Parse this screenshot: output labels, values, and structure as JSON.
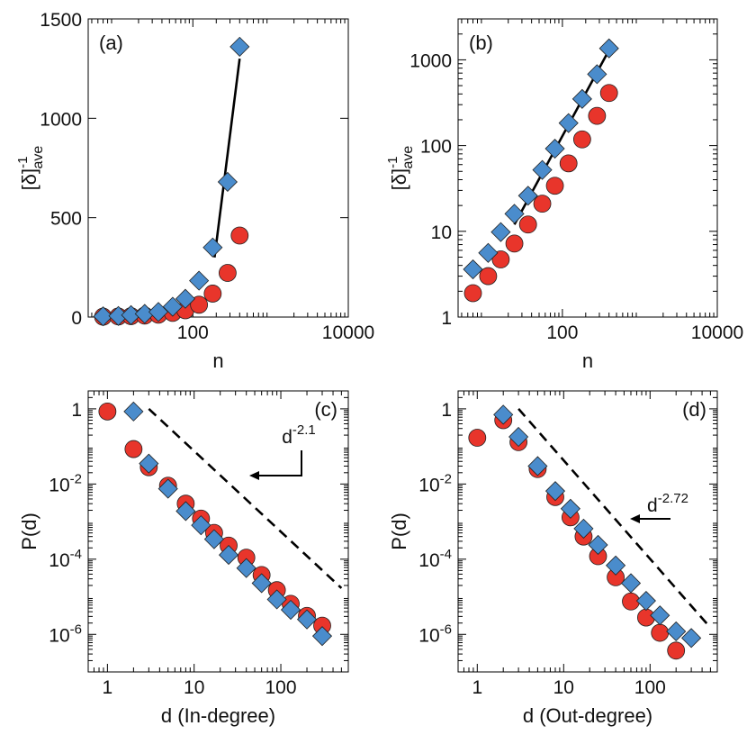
{
  "chart_data": [
    {
      "id": "a",
      "type": "scatter",
      "panel_label": "(a)",
      "xlabel": "n",
      "ylabel": "[δ]ave-1",
      "ylabel_parts": {
        "bracket": "[δ]",
        "sup": "-1",
        "sub": "ave"
      },
      "xscale": "log",
      "yscale": "linear",
      "xlim": [
        4.5,
        10000
      ],
      "ylim": [
        0,
        1500
      ],
      "xticks": [
        {
          "v": 100,
          "label": "100"
        },
        {
          "v": 10000,
          "label": "10000"
        }
      ],
      "yticks": [
        {
          "v": 0,
          "label": "0"
        },
        {
          "v": 500,
          "label": "500"
        },
        {
          "v": 1000,
          "label": "1000"
        },
        {
          "v": 1500,
          "label": "1500"
        }
      ],
      "series": [
        {
          "marker": "circle",
          "color": "#e8352b",
          "points": [
            [
              7,
              1.9
            ],
            [
              11,
              3
            ],
            [
              16,
              4.7
            ],
            [
              24,
              7.2
            ],
            [
              36,
              12
            ],
            [
              55,
              21
            ],
            [
              80,
              34
            ],
            [
              120,
              62
            ],
            [
              180,
              118
            ],
            [
              280,
              222
            ],
            [
              400,
              410
            ]
          ]
        },
        {
          "marker": "diamond",
          "color": "#4a8ccc",
          "points": [
            [
              7,
              3.6
            ],
            [
              11,
              5.6
            ],
            [
              16,
              9.8
            ],
            [
              24,
              16
            ],
            [
              36,
              26
            ],
            [
              55,
              52
            ],
            [
              80,
              92
            ],
            [
              120,
              183
            ],
            [
              180,
              350
            ],
            [
              280,
              680
            ],
            [
              400,
              1360
            ]
          ]
        }
      ],
      "lines": [
        {
          "style": "solid",
          "points": [
            [
              190,
              300
            ],
            [
              400,
              1300
            ]
          ]
        }
      ]
    },
    {
      "id": "b",
      "type": "scatter",
      "panel_label": "(b)",
      "xlabel": "n",
      "ylabel": "[δ]ave-1",
      "ylabel_parts": {
        "bracket": "[δ]",
        "sup": "-1",
        "sub": "ave"
      },
      "xscale": "log",
      "yscale": "log",
      "xlim": [
        4.5,
        10000
      ],
      "ylim": [
        1,
        3000
      ],
      "xticks": [
        {
          "v": 100,
          "label": "100"
        },
        {
          "v": 10000,
          "label": "10000"
        }
      ],
      "yticks": [
        {
          "v": 1,
          "label": "1"
        },
        {
          "v": 10,
          "label": "10"
        },
        {
          "v": 100,
          "label": "100"
        },
        {
          "v": 1000,
          "label": "1000"
        }
      ],
      "series": [
        {
          "marker": "circle",
          "color": "#e8352b",
          "points": [
            [
              7,
              1.9
            ],
            [
              11,
              3
            ],
            [
              16,
              4.7
            ],
            [
              24,
              7.2
            ],
            [
              36,
              12
            ],
            [
              55,
              21
            ],
            [
              80,
              34
            ],
            [
              120,
              62
            ],
            [
              180,
              118
            ],
            [
              280,
              222
            ],
            [
              400,
              410
            ]
          ]
        },
        {
          "marker": "diamond",
          "color": "#4a8ccc",
          "points": [
            [
              7,
              3.6
            ],
            [
              11,
              5.6
            ],
            [
              16,
              9.8
            ],
            [
              24,
              16
            ],
            [
              36,
              26
            ],
            [
              55,
              52
            ],
            [
              80,
              92
            ],
            [
              120,
              183
            ],
            [
              180,
              350
            ],
            [
              280,
              680
            ],
            [
              400,
              1360
            ]
          ]
        }
      ],
      "lines": [
        {
          "style": "solid",
          "points": [
            [
              24,
              12
            ],
            [
              400,
              1300
            ]
          ]
        }
      ]
    },
    {
      "id": "c",
      "type": "scatter",
      "panel_label": "(c)",
      "xlabel": "d (In-degree)",
      "ylabel": "P(d)",
      "xscale": "log",
      "yscale": "log",
      "xlim": [
        0.6,
        600
      ],
      "ylim": [
        1e-07,
        3
      ],
      "xticks": [
        {
          "v": 1,
          "label": "1"
        },
        {
          "v": 10,
          "label": "10"
        },
        {
          "v": 100,
          "label": "100"
        }
      ],
      "yticks": [
        {
          "v": 1,
          "label": "1"
        },
        {
          "v": 0.01,
          "label": "10",
          "sup": "-2"
        },
        {
          "v": 0.0001,
          "label": "10",
          "sup": "-4"
        },
        {
          "v": 1e-06,
          "label": "10",
          "sup": "-6"
        }
      ],
      "series": [
        {
          "marker": "circle",
          "color": "#e8352b",
          "points": [
            [
              1,
              0.85
            ],
            [
              2,
              0.085
            ],
            [
              3,
              0.028
            ],
            [
              5,
              0.009
            ],
            [
              8,
              0.003
            ],
            [
              12,
              0.0012
            ],
            [
              17,
              0.0005
            ],
            [
              25,
              0.00023
            ],
            [
              40,
              0.00011
            ],
            [
              60,
              3.8e-05
            ],
            [
              90,
              1.5e-05
            ],
            [
              130,
              6.5e-06
            ],
            [
              200,
              3.1e-06
            ],
            [
              300,
              1.7e-06
            ]
          ]
        },
        {
          "marker": "diamond",
          "color": "#4a8ccc",
          "points": [
            [
              2,
              0.85
            ],
            [
              3,
              0.035
            ],
            [
              5,
              0.0075
            ],
            [
              8,
              0.0019
            ],
            [
              12,
              0.0008
            ],
            [
              17,
              0.00034
            ],
            [
              25,
              0.00013
            ],
            [
              40,
              5.8e-05
            ],
            [
              60,
              2.3e-05
            ],
            [
              90,
              8.5e-06
            ],
            [
              130,
              4.5e-06
            ],
            [
              200,
              2.5e-06
            ],
            [
              300,
              9e-07
            ]
          ]
        }
      ],
      "lines": [
        {
          "style": "dashed",
          "points": [
            [
              3,
              1
            ],
            [
              500,
              1.7e-05
            ]
          ]
        }
      ],
      "annotation": {
        "base": "d",
        "exp": "-2.1",
        "arrow_to": [
          30,
          0.006
        ]
      }
    },
    {
      "id": "d",
      "type": "scatter",
      "panel_label": "(d)",
      "xlabel": "d (Out-degree)",
      "ylabel": "P(d)",
      "xscale": "log",
      "yscale": "log",
      "xlim": [
        0.6,
        600
      ],
      "ylim": [
        1e-07,
        3
      ],
      "xticks": [
        {
          "v": 1,
          "label": "1"
        },
        {
          "v": 10,
          "label": "10"
        },
        {
          "v": 100,
          "label": "100"
        }
      ],
      "yticks": [
        {
          "v": 1,
          "label": "1"
        },
        {
          "v": 0.01,
          "label": "10",
          "sup": "-2"
        },
        {
          "v": 0.0001,
          "label": "10",
          "sup": "-4"
        },
        {
          "v": 1e-06,
          "label": "10",
          "sup": "-6"
        }
      ],
      "series": [
        {
          "marker": "circle",
          "color": "#e8352b",
          "points": [
            [
              1,
              0.17
            ],
            [
              2,
              0.5
            ],
            [
              3,
              0.13
            ],
            [
              5,
              0.025
            ],
            [
              8,
              0.0045
            ],
            [
              12,
              0.0013
            ],
            [
              17,
              0.0004
            ],
            [
              25,
              0.00012
            ],
            [
              40,
              3.3e-05
            ],
            [
              60,
              7.5e-06
            ],
            [
              90,
              2.8e-06
            ],
            [
              130,
              1.1e-06
            ],
            [
              200,
              3.7e-07
            ]
          ]
        },
        {
          "marker": "diamond",
          "color": "#4a8ccc",
          "points": [
            [
              2,
              0.7
            ],
            [
              3,
              0.18
            ],
            [
              5,
              0.03
            ],
            [
              8,
              0.0065
            ],
            [
              12,
              0.0022
            ],
            [
              17,
              0.00065
            ],
            [
              25,
              0.00024
            ],
            [
              40,
              6.8e-05
            ],
            [
              60,
              2.3e-05
            ],
            [
              90,
              7.8e-06
            ],
            [
              130,
              3.2e-06
            ],
            [
              200,
              1.2e-06
            ],
            [
              300,
              8e-07
            ]
          ]
        }
      ],
      "lines": [
        {
          "style": "dashed",
          "points": [
            [
              3,
              1
            ],
            [
              500,
              1.5e-06
            ]
          ]
        }
      ],
      "annotation": {
        "base": "d",
        "exp": "-2.72",
        "arrow_to": [
          40,
          6e-05
        ]
      }
    }
  ]
}
